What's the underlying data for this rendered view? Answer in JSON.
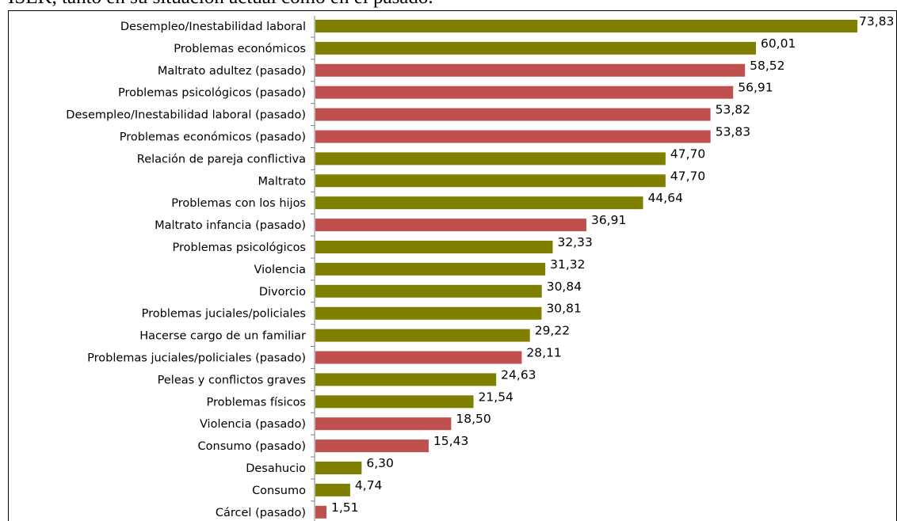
{
  "caption": "ISEK, tanto en su situación actual como en el pasado.",
  "colors": {
    "present": "#808000",
    "past": "#c0504d",
    "axis": "#808080"
  },
  "chart_data": {
    "type": "bar",
    "orientation": "horizontal",
    "title": "",
    "xlabel": "",
    "ylabel": "",
    "xlim": [
      0,
      73.83
    ],
    "grid": false,
    "legend": "none",
    "categories": [
      "Desempleo/Inestabilidad laboral",
      "Problemas económicos",
      "Maltrato adultez (pasado)",
      "Problemas psicológicos (pasado)",
      "Desempleo/Inestabilidad laboral (pasado)",
      "Problemas económicos (pasado)",
      "Relación de pareja conflictiva",
      "Maltrato",
      "Problemas con los hijos",
      "Maltrato infancia (pasado)",
      "Problemas psicológicos",
      "Violencia",
      "Divorcio",
      "Problemas juciales/policiales",
      "Hacerse cargo de un familiar",
      "Problemas juciales/policiales (pasado)",
      "Peleas y conflictos graves",
      "Problemas físicos",
      "Violencia (pasado)",
      "Consumo (pasado)",
      "Desahucio",
      "Consumo",
      "Cárcel (pasado)"
    ],
    "values": [
      73.83,
      60.01,
      58.52,
      56.91,
      53.82,
      53.83,
      47.7,
      47.7,
      44.64,
      36.91,
      32.33,
      31.32,
      30.84,
      30.81,
      29.22,
      28.11,
      24.63,
      21.54,
      18.5,
      15.43,
      6.3,
      4.74,
      1.51
    ],
    "value_labels": [
      "73,83",
      "60,01",
      "58,52",
      "56,91",
      "53,82",
      "53,83",
      "47,70",
      "47,70",
      "44,64",
      "36,91",
      "32,33",
      "31,32",
      "30,84",
      "30,81",
      "29,22",
      "28,11",
      "24,63",
      "21,54",
      "18,50",
      "15,43",
      "6,30",
      "4,74",
      "1,51"
    ],
    "groups": [
      "present",
      "present",
      "past",
      "past",
      "past",
      "past",
      "present",
      "present",
      "present",
      "past",
      "present",
      "present",
      "present",
      "present",
      "present",
      "past",
      "present",
      "present",
      "past",
      "past",
      "present",
      "present",
      "past"
    ]
  }
}
